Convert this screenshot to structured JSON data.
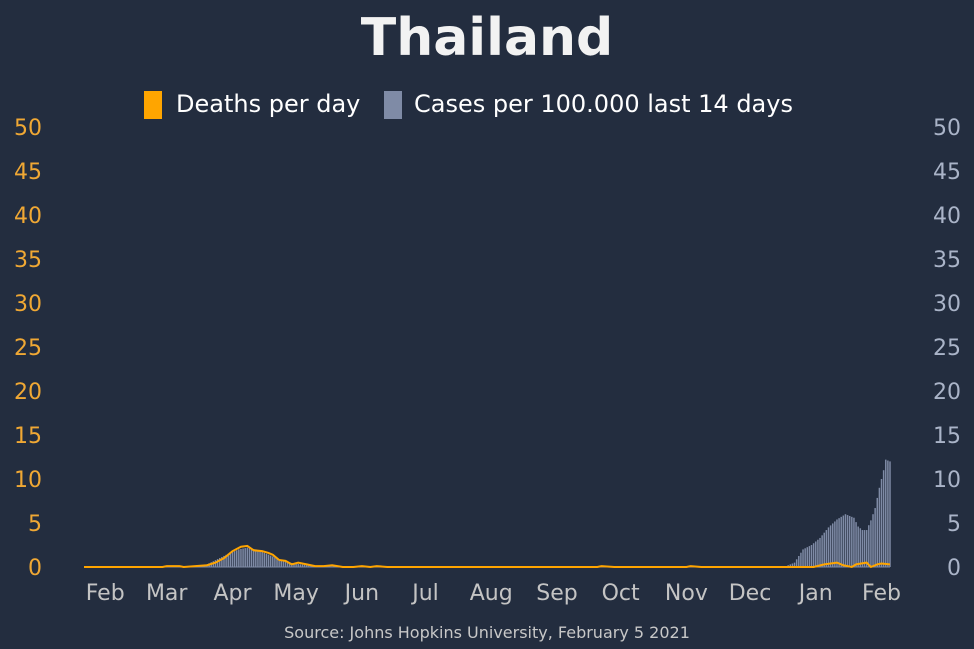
{
  "chart_data": {
    "type": "bar+line",
    "title": "Thailand",
    "source": "Source: Johns Hopkins University, February 5 2021",
    "colors": {
      "background": "#232d3f",
      "deaths": "#ffa500",
      "cases": "#7f8ba6",
      "left_axis": "#f0a834",
      "right_axis": "#aab4c8",
      "x_axis": "#c4c4c4"
    },
    "legend": [
      {
        "name": "Deaths per day",
        "color": "#ffa500"
      },
      {
        "name": "Cases per 100.000 last 14 days",
        "color": "#7f8ba6"
      }
    ],
    "legend_position": "top-center",
    "left_axis": {
      "range": [
        0,
        50
      ],
      "ticks": [
        "0",
        "5",
        "10",
        "15",
        "20",
        "25",
        "30",
        "35",
        "40",
        "45",
        "50"
      ]
    },
    "right_axis": {
      "range": [
        0,
        50
      ],
      "ticks": [
        "0",
        "5",
        "10",
        "15",
        "20",
        "25",
        "30",
        "35",
        "40",
        "45",
        "50"
      ]
    },
    "x_axis": {
      "date_range": [
        "2020-01-22",
        "2021-02-05"
      ],
      "ticks": [
        {
          "label": "Feb",
          "date": "2020-02-01"
        },
        {
          "label": "Mar",
          "date": "2020-03-01"
        },
        {
          "label": "Apr",
          "date": "2020-04-01"
        },
        {
          "label": "May",
          "date": "2020-05-01"
        },
        {
          "label": "Jun",
          "date": "2020-06-01"
        },
        {
          "label": "Jul",
          "date": "2020-07-01"
        },
        {
          "label": "Aug",
          "date": "2020-08-01"
        },
        {
          "label": "Sep",
          "date": "2020-09-01"
        },
        {
          "label": "Oct",
          "date": "2020-10-01"
        },
        {
          "label": "Nov",
          "date": "2020-11-01"
        },
        {
          "label": "Dec",
          "date": "2020-12-01"
        },
        {
          "label": "Jan",
          "date": "2021-01-01"
        },
        {
          "label": "Feb",
          "date": "2021-02-01"
        }
      ]
    },
    "grid": false,
    "series": [
      {
        "name": "Cases per 100.000 last 14 days",
        "type": "bar",
        "points": [
          [
            "2020-01-22",
            0
          ],
          [
            "2020-03-10",
            0
          ],
          [
            "2020-03-15",
            0.05
          ],
          [
            "2020-03-20",
            0.3
          ],
          [
            "2020-03-25",
            0.9
          ],
          [
            "2020-03-30",
            1.5
          ],
          [
            "2020-04-04",
            2.0
          ],
          [
            "2020-04-08",
            2.2
          ],
          [
            "2020-04-12",
            2.0
          ],
          [
            "2020-04-16",
            1.6
          ],
          [
            "2020-04-20",
            1.2
          ],
          [
            "2020-04-24",
            0.8
          ],
          [
            "2020-04-28",
            0.5
          ],
          [
            "2020-05-03",
            0.3
          ],
          [
            "2020-05-08",
            0.15
          ],
          [
            "2020-05-14",
            0.06
          ],
          [
            "2020-05-22",
            0.02
          ],
          [
            "2020-06-01",
            0
          ],
          [
            "2020-12-01",
            0
          ],
          [
            "2020-12-10",
            0.05
          ],
          [
            "2020-12-18",
            0.1
          ],
          [
            "2020-12-22",
            0.5
          ],
          [
            "2020-12-26",
            2.0
          ],
          [
            "2020-12-30",
            2.5
          ],
          [
            "2021-01-03",
            3.3
          ],
          [
            "2021-01-07",
            4.5
          ],
          [
            "2021-01-11",
            5.4
          ],
          [
            "2021-01-15",
            6.0
          ],
          [
            "2021-01-19",
            5.6
          ],
          [
            "2021-01-21",
            4.6
          ],
          [
            "2021-01-23",
            4.2
          ],
          [
            "2021-01-25",
            4.2
          ],
          [
            "2021-01-27",
            5.3
          ],
          [
            "2021-01-29",
            6.7
          ],
          [
            "2021-01-31",
            9.0
          ],
          [
            "2021-02-02",
            11.0
          ],
          [
            "2021-02-03",
            12.2
          ],
          [
            "2021-02-05",
            12.0
          ]
        ]
      },
      {
        "name": "Deaths per day",
        "type": "line",
        "points": [
          [
            "2020-01-22",
            0
          ],
          [
            "2020-02-28",
            0
          ],
          [
            "2020-03-01",
            0.1
          ],
          [
            "2020-03-07",
            0.1
          ],
          [
            "2020-03-09",
            0
          ],
          [
            "2020-03-20",
            0.2
          ],
          [
            "2020-03-24",
            0.5
          ],
          [
            "2020-03-28",
            1.0
          ],
          [
            "2020-04-01",
            1.8
          ],
          [
            "2020-04-05",
            2.3
          ],
          [
            "2020-04-08",
            2.4
          ],
          [
            "2020-04-11",
            1.9
          ],
          [
            "2020-04-15",
            1.8
          ],
          [
            "2020-04-18",
            1.6
          ],
          [
            "2020-04-20",
            1.4
          ],
          [
            "2020-04-23",
            0.8
          ],
          [
            "2020-04-26",
            0.7
          ],
          [
            "2020-04-29",
            0.3
          ],
          [
            "2020-05-02",
            0.5
          ],
          [
            "2020-05-06",
            0.3
          ],
          [
            "2020-05-10",
            0.1
          ],
          [
            "2020-05-14",
            0.1
          ],
          [
            "2020-05-18",
            0.2
          ],
          [
            "2020-05-23",
            0
          ],
          [
            "2020-05-28",
            0
          ],
          [
            "2020-06-01",
            0.1
          ],
          [
            "2020-06-05",
            0
          ],
          [
            "2020-06-08",
            0.1
          ],
          [
            "2020-06-13",
            0
          ],
          [
            "2020-09-20",
            0
          ],
          [
            "2020-09-22",
            0.1
          ],
          [
            "2020-09-28",
            0
          ],
          [
            "2020-11-01",
            0
          ],
          [
            "2020-11-03",
            0.1
          ],
          [
            "2020-11-08",
            0
          ],
          [
            "2020-12-31",
            0
          ],
          [
            "2021-01-05",
            0.3
          ],
          [
            "2021-01-11",
            0.5
          ],
          [
            "2021-01-14",
            0.2
          ],
          [
            "2021-01-18",
            0.0
          ],
          [
            "2021-01-20",
            0.3
          ],
          [
            "2021-01-25",
            0.5
          ],
          [
            "2021-01-27",
            0.0
          ],
          [
            "2021-01-30",
            0.3
          ],
          [
            "2021-02-01",
            0.4
          ],
          [
            "2021-02-05",
            0.3
          ]
        ]
      }
    ]
  }
}
